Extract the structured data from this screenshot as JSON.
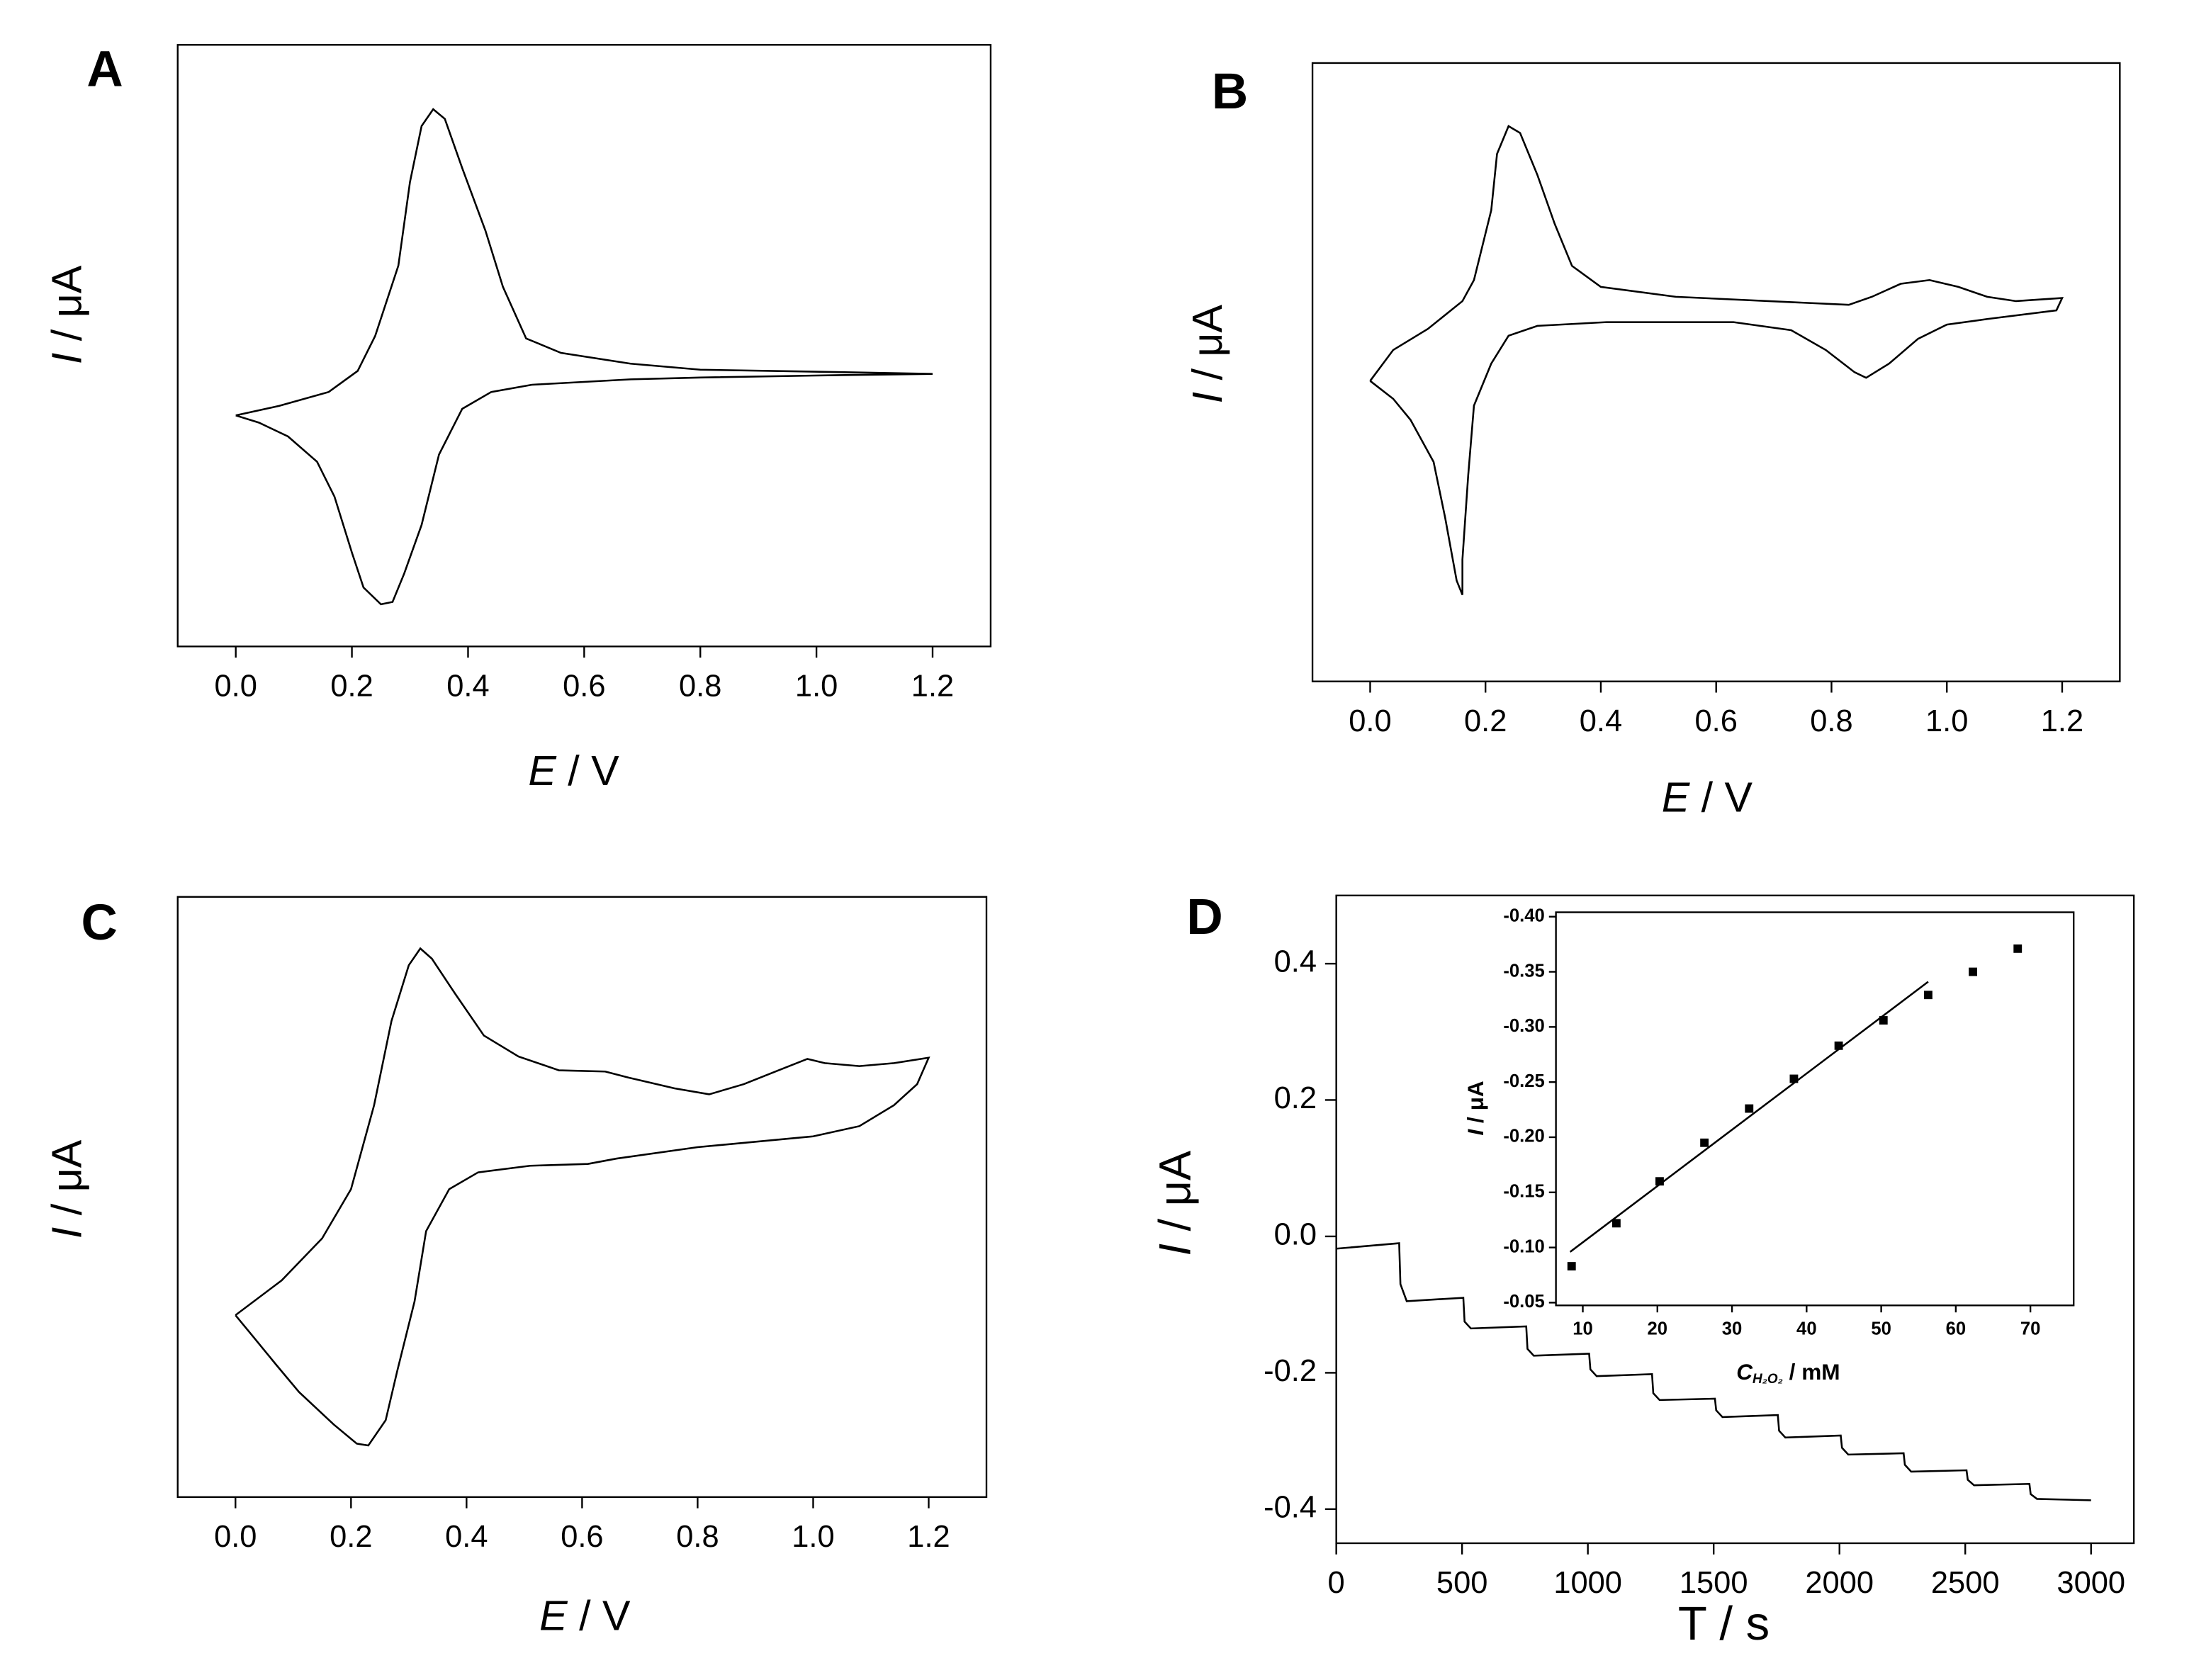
{
  "chart_data": [
    {
      "type": "line",
      "label": "A",
      "xlabel_symbol": "E",
      "xlabel_unit": " / V",
      "ylabel_symbol": "I",
      "ylabel_unit": " / μA",
      "color": "#000000",
      "xlim": [
        -0.1,
        1.3
      ],
      "ylim": [
        0,
        100
      ],
      "xticks": [
        {
          "value": 0,
          "label": "0.0"
        },
        0.2,
        0.4,
        0.6,
        0.8,
        {
          "value": 1,
          "label": "1.0"
        },
        1.2
      ],
      "x": [
        0.0,
        0.075,
        0.16,
        0.21,
        0.24,
        0.28,
        0.3,
        0.32,
        0.34,
        0.36,
        0.39,
        0.43,
        0.46,
        0.5,
        0.56,
        0.68,
        0.8,
        1.04,
        1.2,
        1.04,
        0.8,
        0.68,
        0.51,
        0.44,
        0.39,
        0.35,
        0.32,
        0.29,
        0.27,
        0.25,
        0.22,
        0.2,
        0.17,
        0.14,
        0.09,
        0.04,
        0.0
      ],
      "values": [
        38.4,
        40.0,
        42.3,
        45.8,
        51.6,
        63.3,
        77.2,
        86.5,
        89.3,
        87.7,
        79.5,
        69.1,
        59.8,
        51.2,
        48.8,
        47.0,
        46.0,
        45.6,
        45.3,
        45.1,
        44.7,
        44.4,
        43.5,
        42.3,
        39.5,
        31.9,
        20.2,
        12.1,
        7.4,
        7.0,
        9.8,
        15.6,
        24.9,
        30.7,
        34.9,
        37.2,
        38.4
      ]
    },
    {
      "type": "line",
      "label": "B",
      "xlabel_symbol": "E",
      "xlabel_unit": " / V",
      "ylabel_symbol": "I",
      "ylabel_unit": " / μA",
      "color": "#000000",
      "xlim": [
        -0.1,
        1.3
      ],
      "ylim": [
        0,
        100
      ],
      "xticks": [
        {
          "value": 0,
          "label": "0.0"
        },
        0.2,
        0.4,
        0.6,
        0.8,
        {
          "value": 1,
          "label": "1.0"
        },
        1.2
      ],
      "x": [
        0.0,
        0.04,
        0.1,
        0.16,
        0.18,
        0.21,
        0.22,
        0.24,
        0.26,
        0.29,
        0.32,
        0.35,
        0.4,
        0.53,
        0.83,
        0.87,
        0.92,
        0.97,
        1.02,
        1.07,
        1.12,
        1.2,
        1.19,
        1.07,
        1.0,
        0.95,
        0.9,
        0.86,
        0.84,
        0.79,
        0.73,
        0.63,
        0.41,
        0.29,
        0.24,
        0.21,
        0.18,
        0.17,
        0.16,
        0.16,
        0.15,
        0.13,
        0.11,
        0.07,
        0.04,
        0.0
      ],
      "values": [
        48.6,
        53.6,
        57.0,
        61.5,
        64.9,
        76.2,
        85.3,
        89.8,
        88.7,
        81.9,
        74.0,
        67.2,
        63.8,
        62.2,
        60.9,
        62.2,
        64.3,
        64.9,
        63.8,
        62.2,
        61.5,
        62.0,
        60.0,
        58.6,
        57.7,
        55.4,
        51.4,
        49.1,
        50.0,
        53.6,
        56.8,
        58.1,
        58.1,
        57.5,
        55.9,
        51.4,
        44.6,
        33.3,
        19.7,
        14.0,
        16.3,
        26.5,
        35.5,
        42.3,
        45.7,
        48.6
      ]
    },
    {
      "type": "line",
      "label": "C",
      "xlabel_symbol": "E",
      "xlabel_unit": " / V",
      "ylabel_symbol": "I",
      "ylabel_unit": " / μA",
      "color": "#000000",
      "xlim": [
        -0.1,
        1.3
      ],
      "ylim": [
        0,
        100
      ],
      "xticks": [
        {
          "value": 0,
          "label": "0.0"
        },
        0.2,
        0.4,
        0.6,
        0.8,
        {
          "value": 1,
          "label": "1.0"
        },
        1.2
      ],
      "x": [
        0.0,
        0.08,
        0.15,
        0.2,
        0.24,
        0.27,
        0.3,
        0.32,
        0.34,
        0.38,
        0.43,
        0.49,
        0.56,
        0.64,
        0.68,
        0.76,
        0.82,
        0.88,
        0.94,
        0.99,
        1.02,
        1.08,
        1.14,
        1.2,
        1.18,
        1.14,
        1.08,
        1.0,
        0.8,
        0.66,
        0.61,
        0.51,
        0.42,
        0.37,
        0.33,
        0.31,
        0.28,
        0.26,
        0.23,
        0.21,
        0.17,
        0.11,
        0.07,
        0.03,
        0.0
      ],
      "values": [
        30.3,
        36.1,
        43.1,
        51.3,
        65.3,
        79.3,
        88.6,
        91.4,
        89.7,
        83.9,
        76.9,
        73.4,
        71.1,
        70.9,
        69.9,
        68.1,
        67.1,
        68.8,
        71.1,
        73.0,
        72.3,
        71.8,
        72.3,
        73.2,
        68.8,
        65.3,
        61.8,
        60.1,
        58.3,
        56.4,
        55.5,
        55.2,
        54.1,
        51.3,
        44.3,
        32.6,
        21.0,
        12.8,
        8.6,
        8.9,
        12.1,
        17.5,
        22.1,
        26.8,
        30.3
      ]
    },
    {
      "type": "line",
      "label": "D",
      "xlabel": "T / s",
      "ylabel_symbol": "I",
      "ylabel_unit": " / μA",
      "color": "#000000",
      "xlim": [
        0,
        3170
      ],
      "ylim": [
        -0.45,
        0.5
      ],
      "xticks": [
        0,
        500,
        1000,
        1500,
        2000,
        2500,
        3000
      ],
      "yticks": [
        0.4,
        0.2,
        {
          "value": 0,
          "label": "0.0"
        },
        -0.2,
        -0.4
      ],
      "x": [
        0,
        250,
        255,
        280,
        505,
        510,
        535,
        755,
        760,
        785,
        1005,
        1010,
        1035,
        1255,
        1260,
        1285,
        1505,
        1510,
        1535,
        1755,
        1760,
        1785,
        2005,
        2010,
        2035,
        2255,
        2260,
        2285,
        2505,
        2510,
        2535,
        2755,
        2760,
        2785,
        3000
      ],
      "values": [
        -0.018,
        -0.01,
        -0.07,
        -0.095,
        -0.09,
        -0.125,
        -0.135,
        -0.132,
        -0.165,
        -0.175,
        -0.172,
        -0.195,
        -0.205,
        -0.202,
        -0.23,
        -0.24,
        -0.238,
        -0.255,
        -0.265,
        -0.262,
        -0.285,
        -0.295,
        -0.292,
        -0.31,
        -0.32,
        -0.318,
        -0.335,
        -0.345,
        -0.343,
        -0.357,
        -0.365,
        -0.363,
        -0.378,
        -0.385,
        -0.387
      ]
    },
    {
      "type": "scatter",
      "xlabel_symbol": "C",
      "xlabel_subscript": "H₂O₂",
      "xlabel_unit": " / mM",
      "ylabel_symbol": "I",
      "ylabel_unit": " / μA",
      "color": "#000000",
      "xlim": [
        6.4,
        75.8
      ],
      "ylim": [
        -0.0475,
        -0.404
      ],
      "xticks": [
        10,
        20,
        30,
        40,
        50,
        60,
        70
      ],
      "yticks": [
        {
          "value": -0.4,
          "label": "-0.40"
        },
        -0.35,
        {
          "value": -0.3,
          "label": "-0.30"
        },
        -0.25,
        {
          "value": -0.2,
          "label": "-0.20"
        },
        -0.15,
        {
          "value": -0.1,
          "label": "-0.10"
        },
        -0.05
      ],
      "x": [
        8.5,
        14.5,
        20.3,
        26.3,
        32.3,
        38.3,
        44.3,
        50.3,
        56.3,
        62.3,
        68.3
      ],
      "values": [
        -0.083,
        -0.122,
        -0.16,
        -0.195,
        -0.226,
        -0.253,
        -0.283,
        -0.306,
        -0.329,
        -0.35,
        -0.371
      ],
      "fit_x": [
        8.3,
        56.3
      ],
      "fit_values": [
        -0.096,
        -0.341
      ]
    }
  ]
}
